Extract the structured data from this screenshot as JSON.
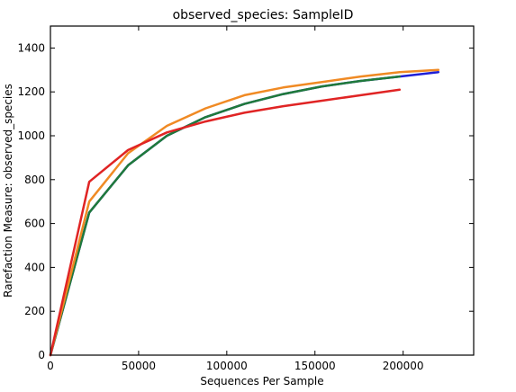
{
  "chart_data": {
    "type": "line",
    "title": "observed_species: SampleID",
    "xlabel": "Sequences Per Sample",
    "ylabel": "Rarefaction Measure: observed_species",
    "xlim": [
      0,
      240000
    ],
    "ylim": [
      0,
      1500
    ],
    "xticks": [
      0,
      50000,
      100000,
      150000,
      200000
    ],
    "xtick_labels": [
      "0",
      "50000",
      "100000",
      "150000",
      "200000"
    ],
    "yticks": [
      0,
      200,
      400,
      600,
      800,
      1000,
      1200,
      1400
    ],
    "ytick_labels": [
      "0",
      "200",
      "400",
      "600",
      "800",
      "1000",
      "1200",
      "1400"
    ],
    "grid": false,
    "legend": "none",
    "series": [
      {
        "color": "#1f1fd6",
        "x": [
          0,
          22000,
          44000,
          66000,
          88000,
          110000,
          132000,
          154000,
          176000,
          198000,
          220000
        ],
        "y": [
          0,
          650,
          865,
          1000,
          1085,
          1145,
          1190,
          1225,
          1250,
          1270,
          1290
        ]
      },
      {
        "color": "#1f7a3a",
        "x": [
          0,
          22000,
          44000,
          66000,
          88000,
          110000,
          132000,
          154000,
          176000,
          198000
        ],
        "y": [
          0,
          650,
          865,
          1000,
          1085,
          1145,
          1190,
          1225,
          1250,
          1270
        ]
      },
      {
        "color": "#f08a24",
        "x": [
          0,
          22000,
          44000,
          66000,
          88000,
          110000,
          132000,
          154000,
          176000,
          198000,
          220000
        ],
        "y": [
          0,
          700,
          920,
          1045,
          1125,
          1185,
          1220,
          1245,
          1270,
          1290,
          1300
        ]
      },
      {
        "color": "#e02424",
        "x": [
          0,
          22000,
          44000,
          66000,
          88000,
          110000,
          132000,
          154000,
          176000,
          198000
        ],
        "y": [
          0,
          790,
          935,
          1015,
          1065,
          1105,
          1135,
          1160,
          1185,
          1210
        ]
      }
    ]
  }
}
